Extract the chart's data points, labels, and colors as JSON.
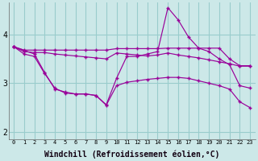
{
  "bg_color": "#cce8e8",
  "grid_color": "#99cccc",
  "line_color": "#990099",
  "marker": "+",
  "xlabel": "Windchill (Refroidissement éolien,°C)",
  "xlim": [
    -0.5,
    23.5
  ],
  "ylim": [
    1.85,
    4.65
  ],
  "yticks": [
    2,
    3,
    4
  ],
  "xticks": [
    0,
    1,
    2,
    3,
    4,
    5,
    6,
    7,
    8,
    9,
    10,
    11,
    12,
    13,
    14,
    15,
    16,
    17,
    18,
    19,
    20,
    21,
    22,
    23
  ],
  "s1_x": [
    0,
    1,
    2,
    3,
    4,
    5,
    6,
    7,
    8,
    9,
    10,
    11,
    12,
    13,
    14,
    15,
    16,
    17,
    18,
    19,
    20,
    21,
    22,
    23
  ],
  "s1_y": [
    3.75,
    3.6,
    3.55,
    3.2,
    2.9,
    2.8,
    2.78,
    2.78,
    2.75,
    2.56,
    3.1,
    3.55,
    3.55,
    3.6,
    3.65,
    4.55,
    4.3,
    3.95,
    3.72,
    3.65,
    3.5,
    3.38,
    2.95,
    2.9
  ],
  "s2_x": [
    0,
    1,
    2,
    3,
    4,
    5,
    6,
    7,
    8,
    9,
    10,
    11,
    12,
    13,
    14,
    15,
    16,
    17,
    18,
    19,
    20,
    21,
    22,
    23
  ],
  "s2_y": [
    3.75,
    3.68,
    3.68,
    3.68,
    3.68,
    3.68,
    3.68,
    3.68,
    3.68,
    3.68,
    3.71,
    3.71,
    3.71,
    3.71,
    3.71,
    3.72,
    3.72,
    3.72,
    3.72,
    3.72,
    3.72,
    3.5,
    3.36,
    3.36
  ],
  "s3_x": [
    0,
    1,
    2,
    3,
    4,
    5,
    6,
    7,
    8,
    9,
    10,
    11,
    12,
    13,
    14,
    15,
    16,
    17,
    18,
    19,
    20,
    21,
    22,
    23
  ],
  "s3_y": [
    3.75,
    3.65,
    3.63,
    3.63,
    3.6,
    3.58,
    3.56,
    3.54,
    3.52,
    3.5,
    3.62,
    3.6,
    3.58,
    3.56,
    3.58,
    3.62,
    3.58,
    3.55,
    3.52,
    3.48,
    3.44,
    3.4,
    3.35,
    3.35
  ],
  "s4_x": [
    0,
    2,
    3,
    4,
    5,
    6,
    7,
    8,
    9,
    10,
    11,
    12,
    13,
    14,
    15,
    16,
    17,
    18,
    19,
    20,
    21,
    22,
    23
  ],
  "s4_y": [
    3.75,
    3.6,
    3.22,
    2.88,
    2.82,
    2.78,
    2.78,
    2.75,
    2.55,
    2.95,
    3.02,
    3.05,
    3.08,
    3.1,
    3.12,
    3.12,
    3.1,
    3.05,
    3.0,
    2.95,
    2.88,
    2.62,
    2.5
  ]
}
